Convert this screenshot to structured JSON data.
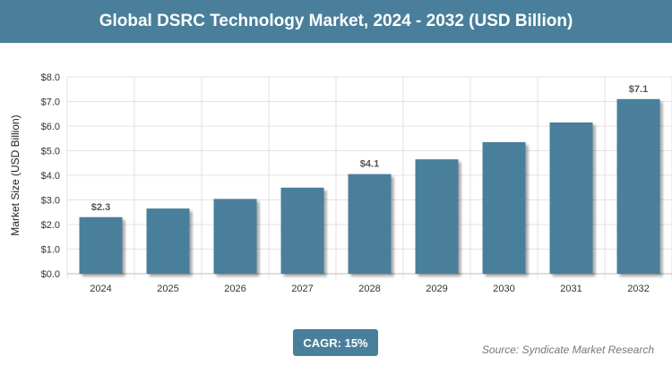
{
  "chart_data": {
    "type": "bar",
    "title": "Global DSRC Technology Market, 2024 - 2032 (USD Billion)",
    "xlabel": "",
    "ylabel": "Market Size (USD Billion)",
    "categories": [
      "2024",
      "2025",
      "2026",
      "2027",
      "2028",
      "2029",
      "2030",
      "2031",
      "2032"
    ],
    "values": [
      2.3,
      2.65,
      3.04,
      3.5,
      4.05,
      4.65,
      5.35,
      6.15,
      7.1
    ],
    "data_labels": {
      "2024": "$2.3",
      "2028": "$4.1",
      "2032": "$7.1"
    },
    "ylim": [
      0,
      8
    ],
    "yticks": [
      "$0.0",
      "$1.0",
      "$2.0",
      "$3.0",
      "$4.0",
      "$5.0",
      "$6.0",
      "$7.0",
      "$8.0"
    ],
    "grid": true,
    "bar_color": "#4a7f9b"
  },
  "badge": "CAGR: 15%",
  "source": "Source: Syndicate Market Research"
}
